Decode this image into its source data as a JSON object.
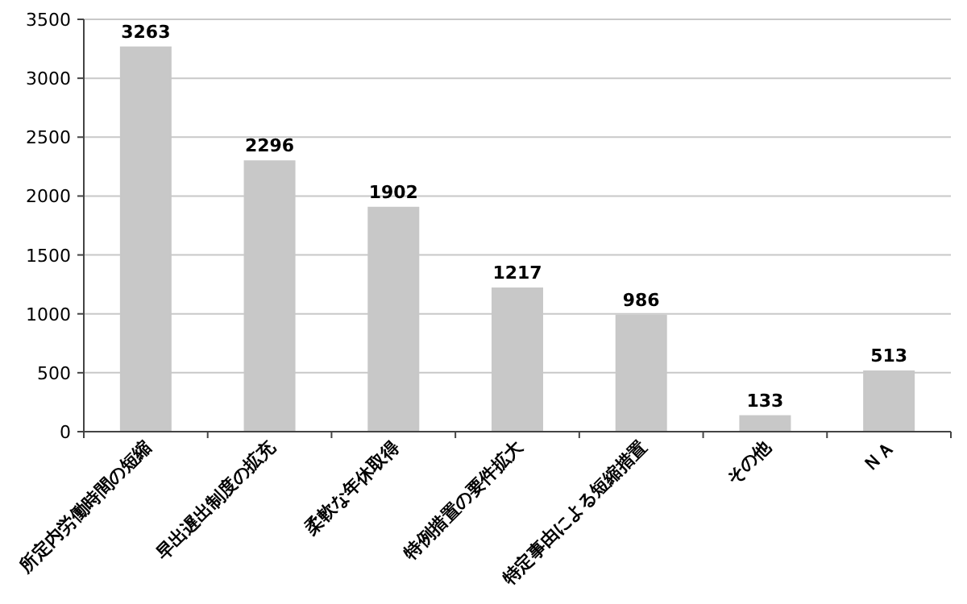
{
  "chart_data": {
    "type": "bar",
    "categories": [
      "所定内労働時間の短縮",
      "早出遅出制度の拡充",
      "柔軟な年休取得",
      "特例措置の要件拡大",
      "特定事由による短縮措置",
      "その他",
      "ＮＡ"
    ],
    "values": [
      3263,
      2296,
      1902,
      1217,
      986,
      133,
      513
    ],
    "color": "#c8c8c8",
    "ylim": [
      0,
      3500
    ],
    "yticks": [
      0,
      500,
      1000,
      1500,
      2000,
      2500,
      3000,
      3500
    ],
    "grid": "y",
    "data_labels": true
  }
}
